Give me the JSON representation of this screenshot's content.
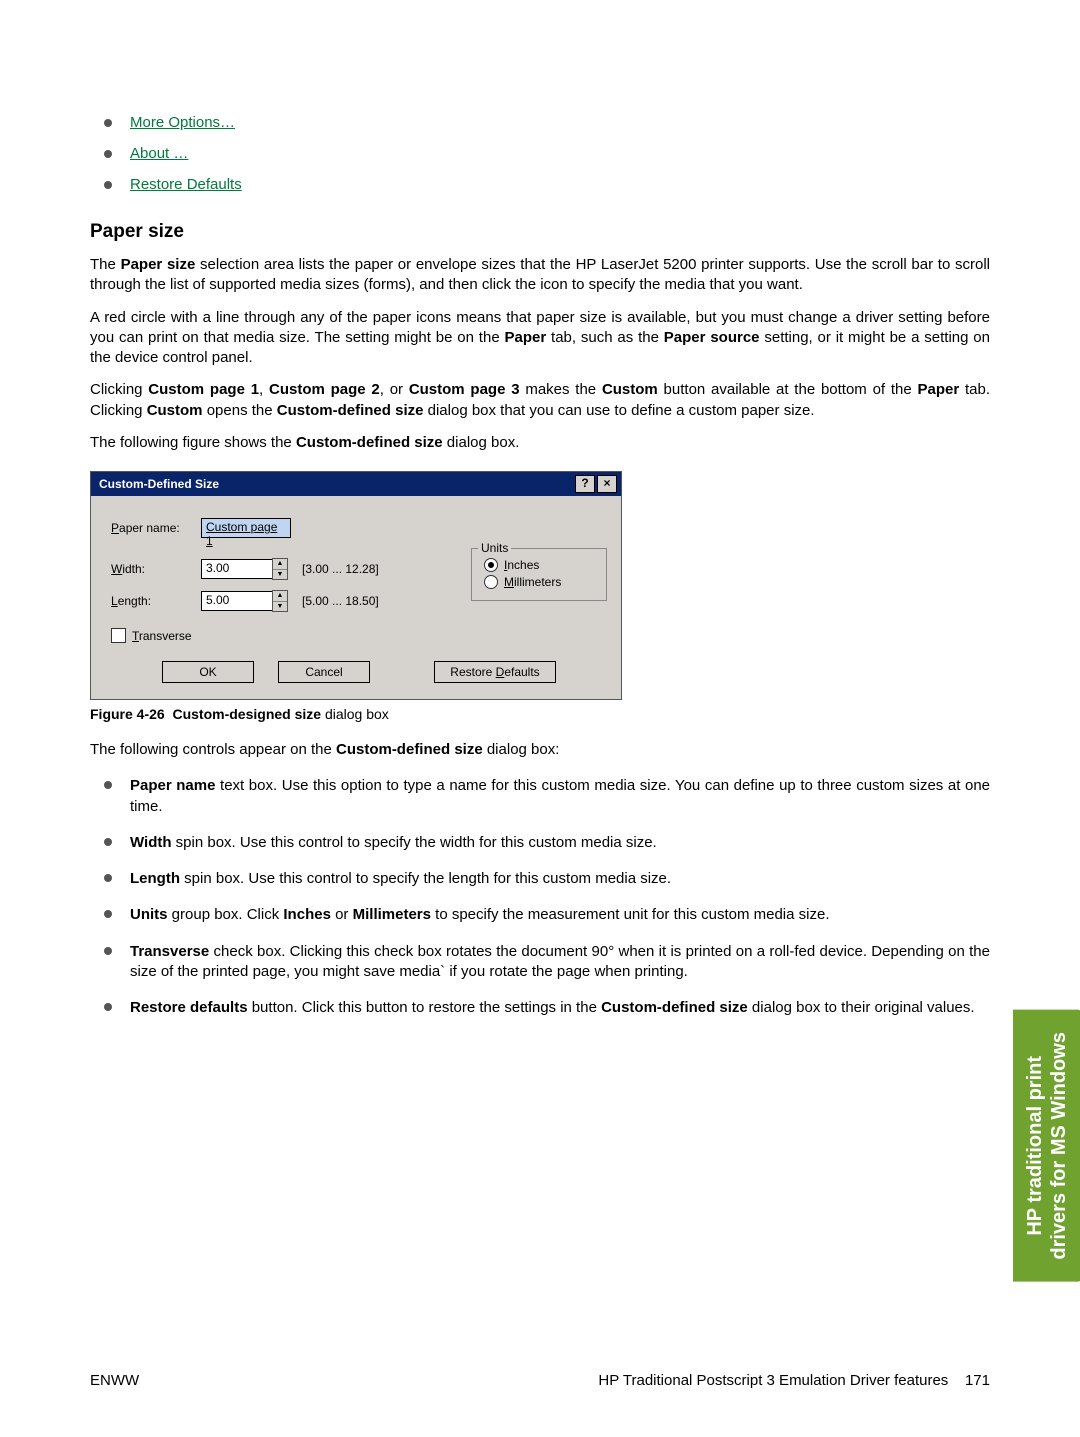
{
  "top_links": {
    "more": "More Options…",
    "about": "About …",
    "restore": "Restore Defaults"
  },
  "section_heading": "Paper size",
  "para1_a": "The ",
  "para1_b": "Paper size",
  "para1_c": " selection area lists the paper or envelope sizes that the HP LaserJet 5200 printer supports. Use the scroll bar to scroll through the list of supported media sizes (forms), and then click the icon to specify the media that you want.",
  "para2_a": "A red circle with a line through any of the paper icons means that paper size is available, but you must change a driver setting before you can print on that media size. The setting might be on the ",
  "para2_b": "Paper",
  "para2_c": " tab, such as the ",
  "para2_d": "Paper source",
  "para2_e": " setting, or it might be a setting on the device control panel.",
  "para3_a": "Clicking ",
  "para3_b": "Custom page 1",
  "para3_c": ", ",
  "para3_d": "Custom page 2",
  "para3_e": ", or ",
  "para3_f": "Custom page 3",
  "para3_g": " makes the ",
  "para3_h": "Custom",
  "para3_i": " button available at the bottom of the ",
  "para3_j": "Paper",
  "para3_k": " tab. Clicking ",
  "para3_l": "Custom",
  "para3_m": " opens the ",
  "para3_n": "Custom-defined size",
  "para3_o": " dialog box that you can use to define a custom paper size.",
  "para4_a": "The following figure shows the ",
  "para4_b": "Custom-defined size",
  "para4_c": " dialog box.",
  "dialog": {
    "title": "Custom-Defined Size",
    "paper_name_label": "Paper name:",
    "paper_name_value": "Custom page 1",
    "width_label": "Width:",
    "width_value": "3.00",
    "width_range": "[3.00 ... 12.28]",
    "length_label": "Length:",
    "length_value": "5.00",
    "length_range": "[5.00 ... 18.50]",
    "units_legend": "Units",
    "inches_label": "Inches",
    "mm_label": "Millimeters",
    "transverse_label": "Transverse",
    "ok": "OK",
    "cancel": "Cancel",
    "restore": "Restore Defaults"
  },
  "figcap_a": "Figure 4-26",
  "figcap_b": "Custom-designed size",
  "figcap_c": " dialog box",
  "para5_a": "The following controls appear on the ",
  "para5_b": "Custom-defined size",
  "para5_c": " dialog box:",
  "controls": {
    "paper_name_b": "Paper name",
    "paper_name_t": " text box. Use this option to type a name for this custom media size. You can define up to three custom sizes at one time.",
    "width_b": "Width",
    "width_t": " spin box. Use this control to specify the width for this custom media size.",
    "length_b": "Length",
    "length_t": " spin box. Use this control to specify the length for this custom media size.",
    "units_b": "Units",
    "units_t1": " group box. Click ",
    "units_b2": "Inches",
    "units_t2": " or ",
    "units_b3": "Millimeters",
    "units_t3": " to specify the measurement unit for this custom media size.",
    "trans_b": "Transverse",
    "trans_t": " check box. Clicking this check box rotates the document 90° when it is printed on a roll-fed device. Depending on the size of the printed page, you might save media` if you rotate the page when printing.",
    "restore_b": "Restore defaults",
    "restore_t1": " button. Click this button to restore the settings in the ",
    "restore_b2": "Custom-defined size",
    "restore_t2": " dialog box to their original values."
  },
  "sidetab_line1": "HP traditional print",
  "sidetab_line2": "drivers for MS Windows",
  "footer_left": "ENWW",
  "footer_right_text": "HP Traditional Postscript 3 Emulation Driver features",
  "footer_page": "171"
}
